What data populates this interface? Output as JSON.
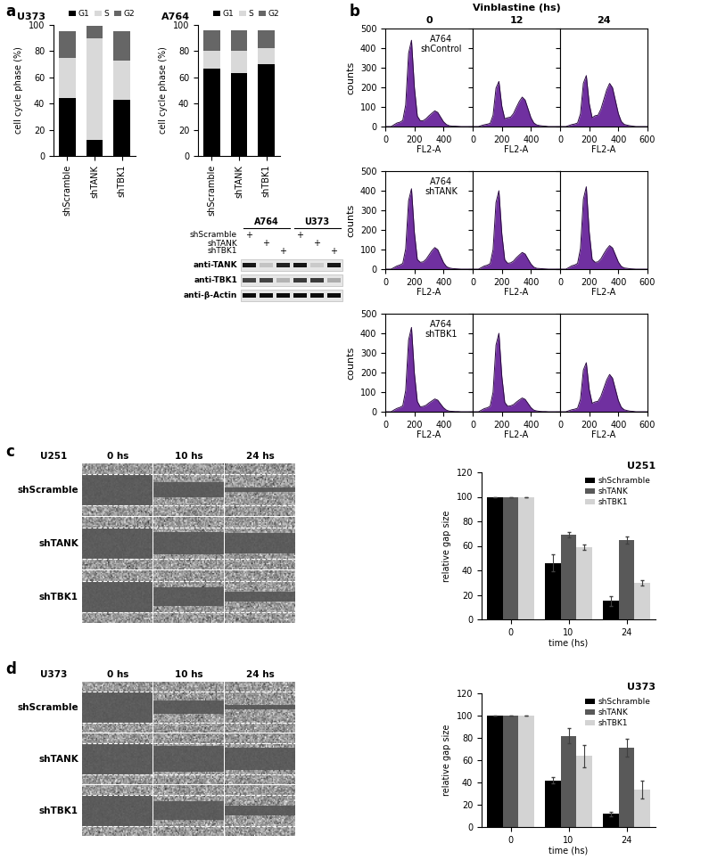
{
  "panel_labels": [
    "a",
    "b",
    "c",
    "d"
  ],
  "chart_data": [
    {
      "type": "bar",
      "stacked": true,
      "title": "U373",
      "categories": [
        "shScramble",
        "shTANK",
        "shTBK1"
      ],
      "series": [
        {
          "name": "G1",
          "color": "#000000",
          "values": [
            44,
            12,
            43
          ]
        },
        {
          "name": "S",
          "color": "#d9d9d9",
          "values": [
            31,
            78,
            30
          ]
        },
        {
          "name": "G2",
          "color": "#666666",
          "values": [
            20,
            9,
            22
          ]
        }
      ],
      "ylabel": "cell cycle phase (%)",
      "ylim": [
        0,
        100
      ],
      "yticks": [
        0,
        20,
        40,
        60,
        80,
        100
      ],
      "legend": "upper right"
    },
    {
      "type": "bar",
      "stacked": true,
      "title": "A764",
      "categories": [
        "shScramble",
        "shTANK",
        "shTBK1"
      ],
      "series": [
        {
          "name": "G1",
          "color": "#000000",
          "values": [
            67,
            63,
            70
          ]
        },
        {
          "name": "S",
          "color": "#d9d9d9",
          "values": [
            13,
            17,
            12
          ]
        },
        {
          "name": "G2",
          "color": "#666666",
          "values": [
            16,
            16,
            14
          ]
        }
      ],
      "ylabel": "cell cycle phase (%)",
      "ylim": [
        0,
        100
      ],
      "yticks": [
        0,
        20,
        40,
        60,
        80,
        100
      ],
      "legend": "upper right"
    },
    {
      "type": "area",
      "color": "#7030a0",
      "annotation": "A764\nshControl",
      "xlabel": "FL2-A",
      "ylabel": "counts",
      "x": [
        0,
        20,
        40,
        60,
        80,
        100,
        120,
        140,
        160,
        180,
        200,
        220,
        240,
        260,
        280,
        300,
        320,
        340,
        360,
        380,
        400,
        420,
        440,
        460,
        480,
        500,
        520,
        540,
        560,
        580,
        600
      ],
      "values": [
        0,
        0,
        0,
        9,
        18,
        22,
        31,
        110,
        374,
        440,
        198,
        53,
        30,
        30,
        40,
        55,
        68,
        80,
        72,
        48,
        24,
        10,
        4,
        2,
        2,
        1,
        0,
        0,
        0,
        0,
        0
      ],
      "xlim": [
        0,
        600
      ],
      "ylim": [
        0,
        500
      ],
      "xticks": [
        0,
        200,
        400
      ],
      "yticks": [
        0,
        100,
        200,
        300,
        400,
        500
      ]
    },
    {
      "type": "area",
      "color": "#7030a0",
      "xlabel": "FL2-A",
      "tick_labels": "x",
      "x": [
        0,
        20,
        40,
        60,
        80,
        100,
        120,
        140,
        160,
        180,
        200,
        220,
        240,
        260,
        280,
        300,
        320,
        340,
        360,
        380,
        400,
        420,
        440,
        460,
        480,
        500,
        520,
        540,
        560,
        580,
        600
      ],
      "values": [
        0,
        0,
        0,
        5,
        9,
        12,
        16,
        58,
        196,
        230,
        104,
        40,
        45,
        48,
        66,
        98,
        128,
        150,
        135,
        90,
        45,
        18,
        8,
        5,
        3,
        2,
        0,
        0,
        0,
        0,
        0
      ],
      "xlim": [
        0,
        600
      ],
      "ylim": [
        0,
        500
      ],
      "xticks": [
        0,
        200,
        400
      ],
      "yticks": [
        0,
        100,
        200,
        300,
        400,
        500
      ]
    },
    {
      "type": "area",
      "color": "#7030a0",
      "xlabel": "FL2-A",
      "tick_labels": "x",
      "x": [
        0,
        20,
        40,
        60,
        80,
        100,
        120,
        140,
        160,
        180,
        200,
        220,
        240,
        260,
        280,
        300,
        320,
        340,
        360,
        380,
        400,
        420,
        440,
        460,
        480,
        500,
        520,
        540,
        560,
        580,
        600
      ],
      "values": [
        0,
        0,
        0,
        5,
        10,
        13,
        18,
        65,
        221,
        260,
        117,
        45,
        55,
        58,
        88,
        137,
        187,
        220,
        198,
        132,
        66,
        26,
        11,
        7,
        4,
        2,
        0,
        0,
        0,
        0,
        0
      ],
      "xlim": [
        0,
        600
      ],
      "ylim": [
        0,
        500
      ],
      "xticks": [
        0,
        200,
        400,
        600
      ],
      "yticks": [
        0,
        100,
        200,
        300,
        400,
        500
      ]
    },
    {
      "type": "area",
      "color": "#7030a0",
      "annotation": "A764\nshTANK",
      "xlabel": "FL2-A",
      "ylabel": "counts",
      "x": [
        0,
        20,
        40,
        60,
        80,
        100,
        120,
        140,
        160,
        180,
        200,
        220,
        240,
        260,
        280,
        300,
        320,
        340,
        360,
        380,
        400,
        420,
        440,
        460,
        480,
        500,
        520,
        540,
        560,
        580,
        600
      ],
      "values": [
        0,
        0,
        0,
        8,
        16,
        21,
        29,
        103,
        349,
        410,
        185,
        49,
        35,
        37,
        50,
        72,
        94,
        110,
        99,
        66,
        33,
        13,
        6,
        3,
        2,
        1,
        0,
        0,
        0,
        0,
        0
      ],
      "xlim": [
        0,
        600
      ],
      "ylim": [
        0,
        500
      ],
      "xticks": [
        0,
        200,
        400
      ],
      "yticks": [
        0,
        100,
        200,
        300,
        400,
        500
      ]
    },
    {
      "type": "area",
      "color": "#7030a0",
      "xlabel": "FL2-A",
      "tick_labels": "x",
      "x": [
        0,
        20,
        40,
        60,
        80,
        100,
        120,
        140,
        160,
        180,
        200,
        220,
        240,
        260,
        280,
        300,
        320,
        340,
        360,
        380,
        400,
        420,
        440,
        460,
        480,
        500,
        520,
        540,
        560,
        580,
        600
      ],
      "values": [
        0,
        0,
        0,
        8,
        16,
        20,
        28,
        100,
        340,
        400,
        180,
        48,
        30,
        32,
        41,
        58,
        72,
        85,
        77,
        51,
        26,
        10,
        4,
        3,
        2,
        1,
        0,
        0,
        0,
        0,
        0
      ],
      "xlim": [
        0,
        600
      ],
      "ylim": [
        0,
        500
      ],
      "xticks": [
        0,
        200,
        400
      ],
      "yticks": [
        0,
        100,
        200,
        300,
        400,
        500
      ]
    },
    {
      "type": "area",
      "color": "#7030a0",
      "xlabel": "FL2-A",
      "tick_labels": "x",
      "x": [
        0,
        20,
        40,
        60,
        80,
        100,
        120,
        140,
        160,
        180,
        200,
        220,
        240,
        260,
        280,
        300,
        320,
        340,
        360,
        380,
        400,
        420,
        440,
        460,
        480,
        500,
        520,
        540,
        560,
        580,
        600
      ],
      "values": [
        0,
        0,
        0,
        8,
        17,
        21,
        29,
        105,
        357,
        420,
        189,
        50,
        35,
        37,
        52,
        78,
        102,
        120,
        108,
        72,
        36,
        14,
        6,
        4,
        2,
        1,
        0,
        0,
        0,
        0,
        0
      ],
      "xlim": [
        0,
        600
      ],
      "ylim": [
        0,
        500
      ],
      "xticks": [
        0,
        200,
        400,
        600
      ],
      "yticks": [
        0,
        100,
        200,
        300,
        400,
        500
      ]
    },
    {
      "type": "area",
      "color": "#7030a0",
      "annotation": "A764\nshTBK1",
      "xlabel": "FL2-A",
      "ylabel": "counts",
      "x": [
        0,
        20,
        40,
        60,
        80,
        100,
        120,
        140,
        160,
        180,
        200,
        220,
        240,
        260,
        280,
        300,
        320,
        340,
        360,
        380,
        400,
        420,
        440,
        460,
        480,
        500,
        520,
        540,
        560,
        580,
        600
      ],
      "values": [
        0,
        0,
        0,
        9,
        17,
        22,
        30,
        108,
        366,
        430,
        194,
        52,
        25,
        27,
        33,
        45,
        55,
        65,
        59,
        39,
        20,
        8,
        3,
        2,
        1,
        1,
        0,
        0,
        0,
        0,
        0
      ],
      "xlim": [
        0,
        600
      ],
      "ylim": [
        0,
        500
      ],
      "xticks": [
        0,
        200,
        400
      ],
      "yticks": [
        0,
        100,
        200,
        300,
        400,
        500
      ]
    },
    {
      "type": "area",
      "color": "#7030a0",
      "xlabel": "FL2-A",
      "tick_labels": "x",
      "x": [
        0,
        20,
        40,
        60,
        80,
        100,
        120,
        140,
        160,
        180,
        200,
        220,
        240,
        260,
        280,
        300,
        320,
        340,
        360,
        380,
        400,
        420,
        440,
        460,
        480,
        500,
        520,
        540,
        560,
        580,
        600
      ],
      "values": [
        0,
        0,
        0,
        8,
        16,
        20,
        28,
        100,
        340,
        400,
        180,
        48,
        28,
        30,
        36,
        49,
        60,
        70,
        63,
        42,
        21,
        8,
        4,
        2,
        1,
        1,
        0,
        0,
        0,
        0,
        0
      ],
      "xlim": [
        0,
        600
      ],
      "ylim": [
        0,
        500
      ],
      "xticks": [
        0,
        200,
        400
      ],
      "yticks": [
        0,
        100,
        200,
        300,
        400,
        500
      ]
    },
    {
      "type": "area",
      "color": "#7030a0",
      "xlabel": "FL2-A",
      "tick_labels": "x",
      "x": [
        0,
        20,
        40,
        60,
        80,
        100,
        120,
        140,
        160,
        180,
        200,
        220,
        240,
        260,
        280,
        300,
        320,
        340,
        360,
        380,
        400,
        420,
        440,
        460,
        480,
        500,
        520,
        540,
        560,
        580,
        600
      ],
      "values": [
        0,
        0,
        0,
        5,
        10,
        13,
        18,
        63,
        213,
        250,
        113,
        43,
        50,
        53,
        78,
        120,
        162,
        190,
        171,
        114,
        57,
        23,
        10,
        6,
        3,
        2,
        0,
        0,
        0,
        0,
        0
      ],
      "xlim": [
        0,
        600
      ],
      "ylim": [
        0,
        500
      ],
      "xticks": [
        0,
        200,
        400,
        600
      ],
      "yticks": [
        0,
        100,
        200,
        300,
        400,
        500
      ]
    },
    {
      "type": "bar",
      "title": "U251",
      "categories": [
        "0",
        "10",
        "24"
      ],
      "xlabel": "time (hs)",
      "ylabel": "relative gap size",
      "series": [
        {
          "name": "shSchramble",
          "color": "#000000",
          "values": [
            100,
            46,
            15
          ],
          "errors": [
            0,
            7,
            4
          ]
        },
        {
          "name": "shTANK",
          "color": "#595959",
          "values": [
            100,
            69,
            65
          ],
          "errors": [
            0,
            2,
            3
          ]
        },
        {
          "name": "shTBK1",
          "color": "#d3d3d3",
          "values": [
            100,
            59,
            30
          ],
          "errors": [
            0,
            2,
            2
          ]
        }
      ],
      "ylim": [
        0,
        120
      ],
      "yticks": [
        0,
        20,
        40,
        60,
        80,
        100,
        120
      ],
      "legend": "upper right"
    },
    {
      "type": "bar",
      "title": "U373",
      "categories": [
        "0",
        "10",
        "24"
      ],
      "xlabel": "time (hs)",
      "ylabel": "relative gap size",
      "series": [
        {
          "name": "shSchramble",
          "color": "#000000",
          "values": [
            100,
            42,
            12
          ],
          "errors": [
            0,
            3,
            2
          ]
        },
        {
          "name": "shTANK",
          "color": "#595959",
          "values": [
            100,
            82,
            71
          ],
          "errors": [
            0,
            7,
            8
          ]
        },
        {
          "name": "shTBK1",
          "color": "#d3d3d3",
          "values": [
            100,
            64,
            34
          ],
          "errors": [
            0,
            10,
            8
          ]
        }
      ],
      "ylim": [
        0,
        120
      ],
      "yticks": [
        0,
        20,
        40,
        60,
        80,
        100,
        120
      ],
      "legend": "upper right"
    }
  ],
  "flow_cytometry": {
    "title": "Vinblastine (hs)",
    "columns": [
      "0",
      "12",
      "24"
    ]
  },
  "blot": {
    "columns": [
      "A764",
      "U373"
    ],
    "rows": [
      {
        "label": "shScramble",
        "marks": [
          "+",
          null,
          null,
          "+",
          null,
          null
        ]
      },
      {
        "label": "shTANK",
        "marks": [
          null,
          "+",
          null,
          null,
          "+",
          null
        ]
      },
      {
        "label": "shTBK1",
        "marks": [
          null,
          null,
          "+",
          null,
          null,
          "+"
        ]
      }
    ],
    "antibodies": [
      "anti-TANK",
      "anti-TBK1",
      "anti-β-Actin"
    ]
  },
  "scratch_assays": [
    {
      "cell_line": "U251",
      "times": [
        "0 hs",
        "10 hs",
        "24 hs"
      ],
      "conditions": [
        "shScramble",
        "shTANK",
        "shTBK1"
      ]
    },
    {
      "cell_line": "U373",
      "times": [
        "0 hs",
        "10 hs",
        "24 hs"
      ],
      "conditions": [
        "shScramble",
        "shTANK",
        "shTBK1"
      ]
    }
  ]
}
